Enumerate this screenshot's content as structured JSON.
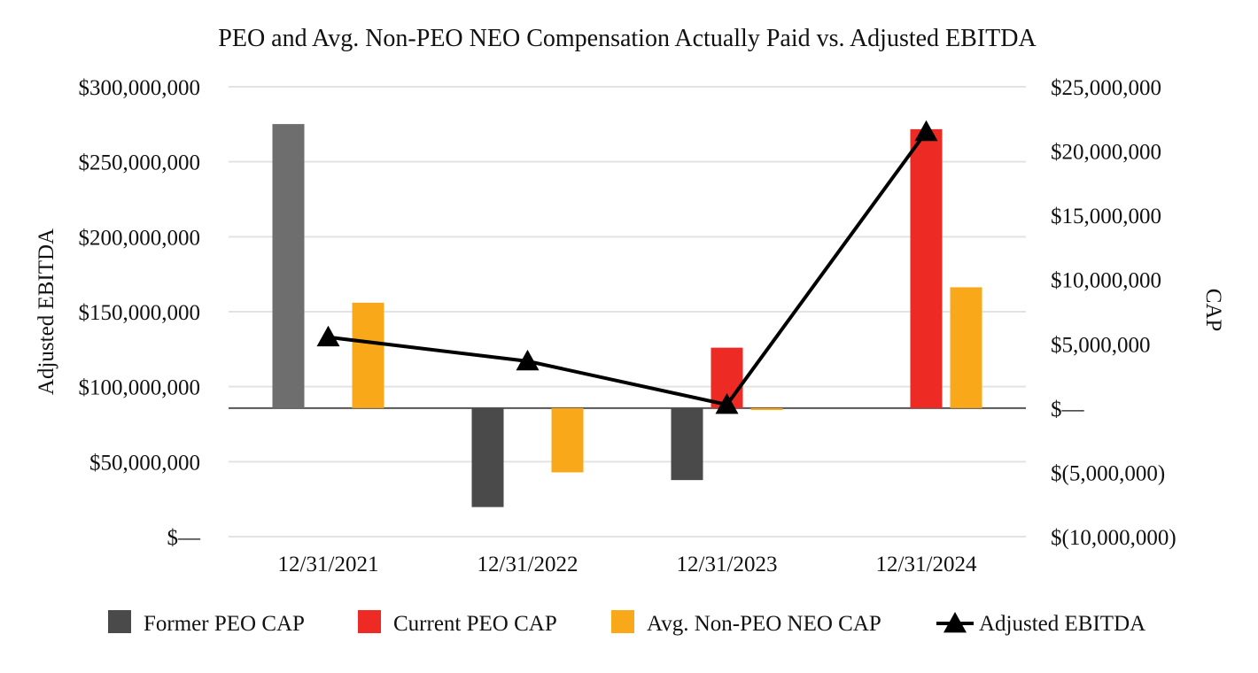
{
  "chart_data": {
    "type": "bar",
    "title": "PEO and Avg. Non-PEO NEO Compensation Actually Paid vs. Adjusted EBITDA",
    "left_axis_label": "Adjusted EBITDA",
    "right_axis_label": "CAP",
    "categories": [
      "12/31/2021",
      "12/31/2022",
      "12/31/2023",
      "12/31/2024"
    ],
    "left_axis": {
      "min": 0,
      "max": 300000000,
      "ticks": [
        {
          "value": 300000000,
          "label": "$300,000,000"
        },
        {
          "value": 250000000,
          "label": "$250,000,000"
        },
        {
          "value": 200000000,
          "label": "$200,000,000"
        },
        {
          "value": 150000000,
          "label": "$150,000,000"
        },
        {
          "value": 100000000,
          "label": "$100,000,000"
        },
        {
          "value": 50000000,
          "label": "$50,000,000"
        },
        {
          "value": 0,
          "label": "$—"
        }
      ]
    },
    "right_axis": {
      "min": -10000000,
      "max": 25000000,
      "ticks": [
        {
          "value": 25000000,
          "label": "$25,000,000"
        },
        {
          "value": 20000000,
          "label": "$20,000,000"
        },
        {
          "value": 15000000,
          "label": "$15,000,000"
        },
        {
          "value": 10000000,
          "label": "$10,000,000"
        },
        {
          "value": 5000000,
          "label": "$5,000,000"
        },
        {
          "value": 0,
          "label": "$—"
        },
        {
          "value": -5000000,
          "label": "$(5,000,000)"
        },
        {
          "value": -10000000,
          "label": "$(10,000,000)"
        }
      ]
    },
    "bar_series": [
      {
        "name": "Former PEO CAP",
        "color": "#4a4a4a",
        "alt_color": "#6e6e6e",
        "values": [
          22100000,
          -7700000,
          -5600000,
          null
        ]
      },
      {
        "name": "Current PEO CAP",
        "color": "#ee2a24",
        "values": [
          null,
          null,
          4700000,
          21700000
        ]
      },
      {
        "name": "Avg. Non-PEO NEO CAP",
        "color": "#f9a81a",
        "values": [
          8200000,
          -5000000,
          -150000,
          9400000
        ]
      }
    ],
    "line_series": {
      "name": "Adjusted EBITDA",
      "color": "#000000",
      "marker": "triangle",
      "values": [
        133000000,
        117000000,
        88000000,
        270000000
      ]
    },
    "legend_position": "bottom",
    "grid": true
  }
}
